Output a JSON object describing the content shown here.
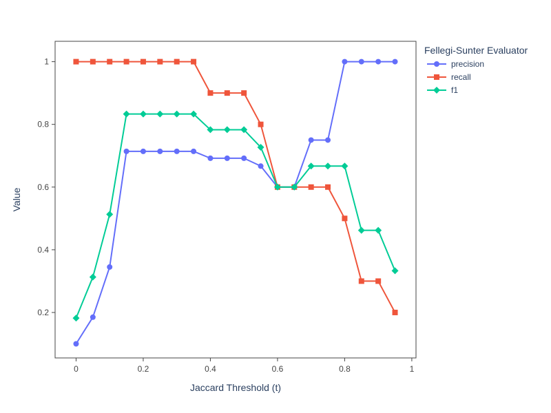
{
  "chart_data": {
    "type": "line",
    "title": "",
    "xlabel": "Jaccard Threshold (t)",
    "ylabel": "Value",
    "xlim": [
      -0.0625,
      1.0125
    ],
    "ylim": [
      0.055,
      1.065
    ],
    "x_ticks": [
      0,
      0.2,
      0.4,
      0.6,
      0.8,
      1
    ],
    "x_tick_labels": [
      "0",
      "0.2",
      "0.4",
      "0.6",
      "0.8",
      "1"
    ],
    "y_ticks": [
      0.2,
      0.4,
      0.6,
      0.8,
      1
    ],
    "y_tick_labels": [
      "0.2",
      "0.4",
      "0.6",
      "0.8",
      "1"
    ],
    "grid": false,
    "legend": {
      "title": "Fellegi-Sunter Evaluator",
      "placement": "right"
    },
    "x": [
      0,
      0.05,
      0.1,
      0.15,
      0.2,
      0.25,
      0.3,
      0.35,
      0.4,
      0.45,
      0.5,
      0.55,
      0.6,
      0.65,
      0.7,
      0.75,
      0.8,
      0.85,
      0.9,
      0.95
    ],
    "series": [
      {
        "name": "precision",
        "color": "#636efa",
        "marker": "circle",
        "values": [
          0.1,
          0.185,
          0.345,
          0.714,
          0.714,
          0.714,
          0.714,
          0.714,
          0.692,
          0.692,
          0.692,
          0.667,
          0.6,
          0.6,
          0.75,
          0.75,
          1,
          1,
          1,
          1
        ]
      },
      {
        "name": "recall",
        "color": "#ef553b",
        "marker": "square",
        "values": [
          1,
          1,
          1,
          1,
          1,
          1,
          1,
          1,
          0.9,
          0.9,
          0.9,
          0.8,
          0.6,
          0.6,
          0.6,
          0.6,
          0.5,
          0.3,
          0.3,
          0.2
        ]
      },
      {
        "name": "f1",
        "color": "#00cc96",
        "marker": "diamond",
        "values": [
          0.182,
          0.313,
          0.513,
          0.833,
          0.833,
          0.833,
          0.833,
          0.833,
          0.783,
          0.783,
          0.783,
          0.727,
          0.6,
          0.6,
          0.667,
          0.667,
          0.667,
          0.462,
          0.462,
          0.333
        ]
      }
    ]
  }
}
